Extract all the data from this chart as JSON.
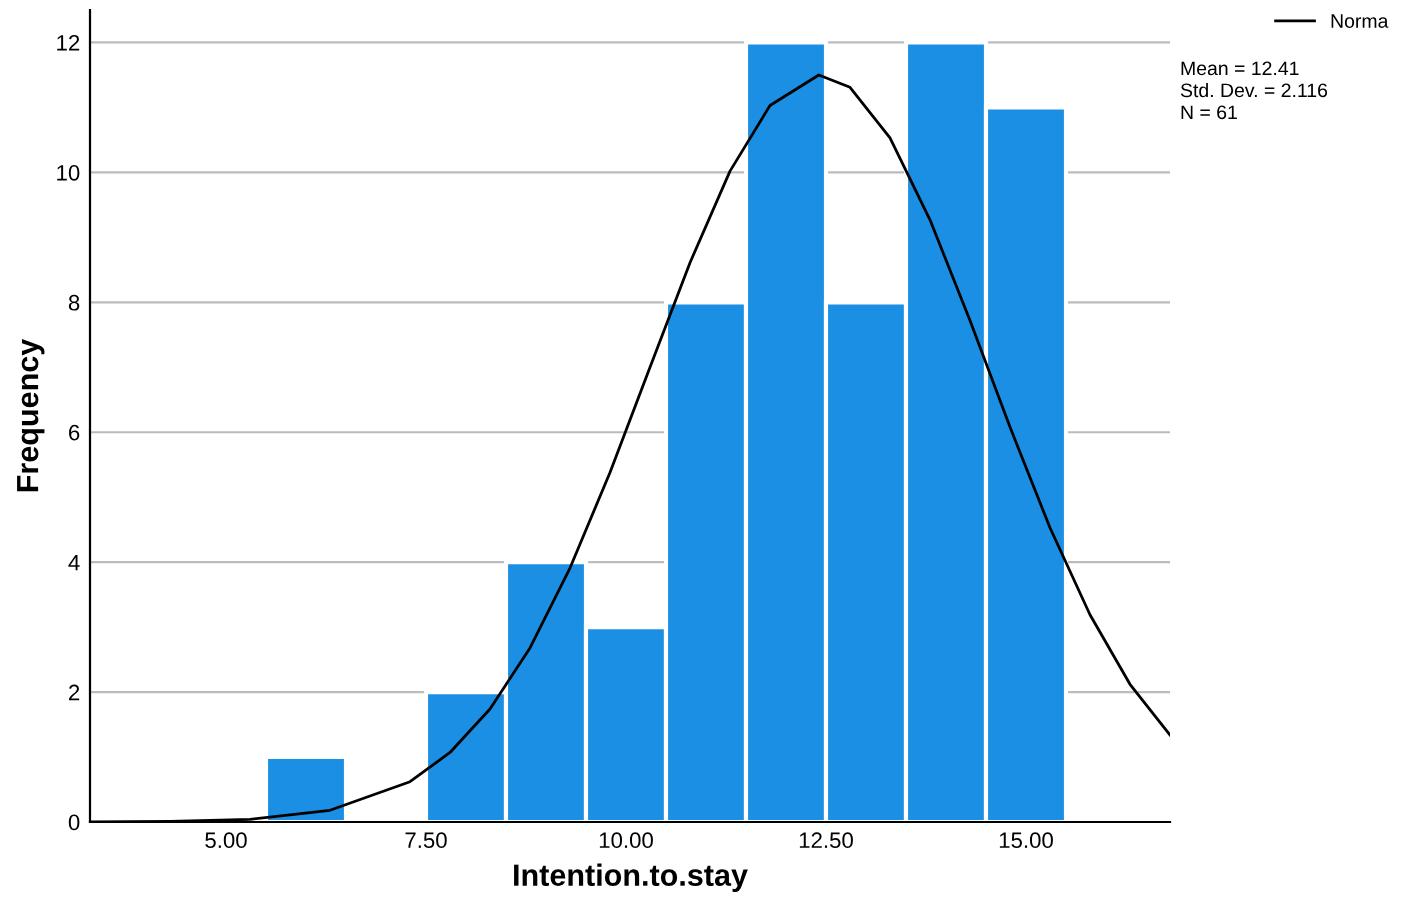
{
  "chart_data": {
    "type": "histogram",
    "xlabel": "Intention.to.stay",
    "ylabel": "Frequency",
    "bins": [
      5.5,
      6.5,
      7.5,
      8.5,
      9.5,
      10.5,
      11.5,
      12.5,
      13.5,
      14.5,
      15.5
    ],
    "values": [
      1,
      0,
      2,
      4,
      3,
      8,
      12,
      8,
      12,
      11
    ],
    "color": "#1a8fe3",
    "series": [
      {
        "type": "line",
        "name": "Norma",
        "color": "#000000",
        "x": [
          3.3,
          4.3,
          5.3,
          6.3,
          7.3,
          7.8,
          8.3,
          8.8,
          9.3,
          9.8,
          10.3,
          10.8,
          11.3,
          11.8,
          12.41,
          12.8,
          13.3,
          13.8,
          14.3,
          14.8,
          15.3,
          15.8,
          16.3,
          16.8
        ],
        "values": [
          0.0,
          0.01,
          0.04,
          0.18,
          0.62,
          1.07,
          1.74,
          2.68,
          3.91,
          5.38,
          7.0,
          8.61,
          10.02,
          11.03,
          11.5,
          11.31,
          10.53,
          9.27,
          7.72,
          6.08,
          4.53,
          3.19,
          2.12,
          1.34
        ]
      }
    ],
    "annotations": [
      "Mean = 12.41",
      "Std. Dev. = 2.116",
      "N = 61"
    ],
    "xlim": [
      3.3,
      16.8
    ],
    "xticks": [
      {
        "value": 5,
        "label": "5.00"
      },
      {
        "value": 7.5,
        "label": "7.50"
      },
      {
        "value": 10,
        "label": "10.00"
      },
      {
        "value": 12.5,
        "label": "12.50"
      },
      {
        "value": 15,
        "label": "15.00"
      }
    ],
    "ylim": [
      0,
      12.5
    ],
    "yticks": [
      0,
      2,
      4,
      6,
      8,
      10,
      12
    ],
    "grid": "y",
    "legend": "top right"
  }
}
